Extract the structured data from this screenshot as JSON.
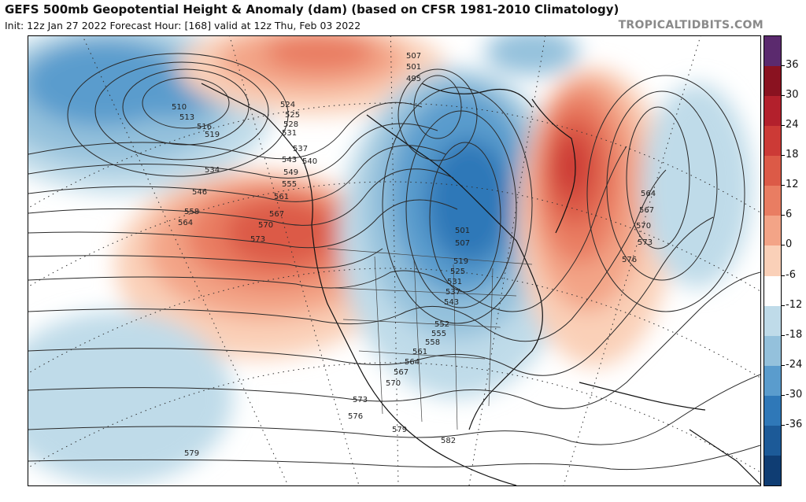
{
  "header": {
    "title": "GEFS 500mb Geopotential Height & Anomaly (dam) (based on CFSR 1981-2010 Climatology)",
    "subtitle": "Init: 12z Jan 27 2022   Forecast Hour: [168]   valid at 12z Thu, Feb 03 2022",
    "brand": "TROPICALTIDBITS.COM"
  },
  "colorbar": {
    "labels": [
      "36",
      "30",
      "24",
      "18",
      "12",
      "6",
      "0",
      "-6",
      "-12",
      "-18",
      "-24",
      "-30",
      "-36"
    ],
    "colors": [
      "#5b2a6e",
      "#8a1220",
      "#b3202c",
      "#cc3a36",
      "#dc5a47",
      "#e97d62",
      "#f3a487",
      "#fad0b8",
      "#ffffff",
      "#bfdbe9",
      "#94c1dc",
      "#5a9ccd",
      "#2f78b8",
      "#1c5a98",
      "#0f3d73"
    ]
  },
  "contour_labels": {
    "north_pacific_low": [
      "510",
      "513",
      "516",
      "519"
    ],
    "pacific_band": [
      "534",
      "546",
      "558",
      "564"
    ],
    "pacific_ridge": [
      "567",
      "570",
      "573"
    ],
    "west_coast": [
      "524",
      "525",
      "528",
      "531",
      "537",
      "540",
      "543",
      "549",
      "555",
      "561"
    ],
    "polar_vortex": [
      "507",
      "501",
      "495"
    ],
    "trough_core": [
      "501",
      "507",
      "519",
      "525",
      "531",
      "537",
      "543"
    ],
    "trough_south": [
      "552",
      "555",
      "558",
      "561",
      "564",
      "567",
      "570",
      "573",
      "576"
    ],
    "atlantic": [
      "564",
      "567",
      "570",
      "573",
      "576"
    ],
    "subtropics": [
      "579",
      "579",
      "582"
    ]
  }
}
